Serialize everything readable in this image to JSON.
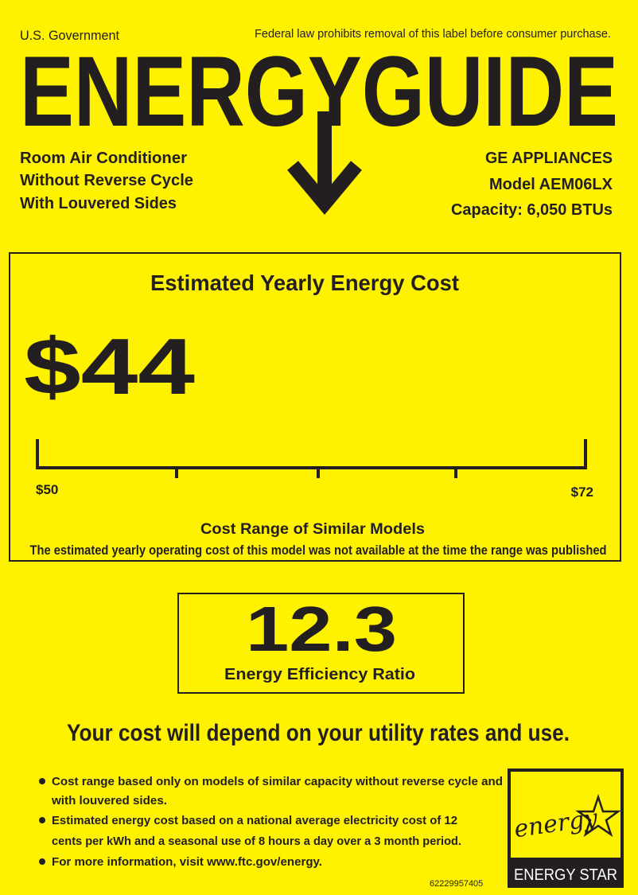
{
  "header": {
    "agency": "U.S. Government",
    "notice": "Federal law prohibits removal of this label before consumer purchase.",
    "title": "ENERGYGUIDE"
  },
  "product": {
    "lines": [
      "Room Air Conditioner",
      "Without Reverse Cycle",
      "With Louvered Sides"
    ]
  },
  "manufacturer": {
    "lines": [
      "GE APPLIANCES",
      "Model AEM06LX",
      "Capacity: 6,050 BTUs"
    ]
  },
  "cost_box": {
    "title": "Estimated Yearly Energy Cost",
    "cost": "$44",
    "range_low": "$50",
    "range_high": "$72",
    "range_title": "Cost Range of Similar Models",
    "range_note": "The estimated yearly operating cost of this model was not available at the time the range was published"
  },
  "efficiency": {
    "value": "12.3",
    "label": "Energy Efficiency Ratio"
  },
  "tagline": "Your cost will depend on your utility rates and use.",
  "bullets": [
    {
      "lines": [
        "Cost range based only on models of similar capacity without reverse cycle and",
        "with louvered sides."
      ]
    },
    {
      "lines": [
        "Estimated energy cost based on a national average electricity cost of 12",
        "cents per kWh and a seasonal use of 8 hours a day over a 3 month period."
      ]
    },
    {
      "lines": [
        "For more information, visit www.ftc.gov/energy."
      ]
    }
  ],
  "energy_star": {
    "script": "energy",
    "label": "ENERGY STAR"
  },
  "code": "62229957405"
}
